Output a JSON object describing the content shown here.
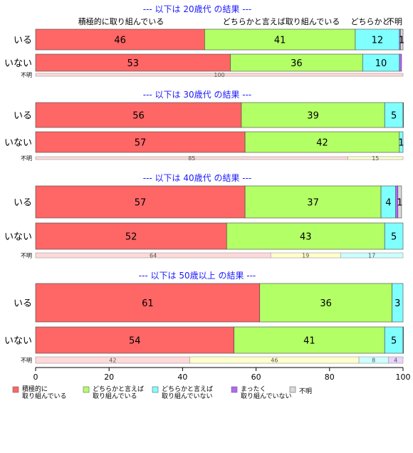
{
  "chart_data": {
    "type": "bar",
    "orientation": "horizontal",
    "stacked": true,
    "xlim": [
      0,
      100
    ],
    "xticks": [
      "0",
      "20",
      "40",
      "60",
      "80",
      "100"
    ],
    "categories_header": [
      "積極的に取り組んでいる",
      "どちらかと言えば取り組んでいる",
      "どちらかと",
      "不明"
    ],
    "legend": [
      {
        "label": [
          "積極的に",
          "取り組んでいる"
        ],
        "color": "#ff6666"
      },
      {
        "label": [
          "どちらかと言えば",
          "取り組んでいる"
        ],
        "color": "#b3ff66"
      },
      {
        "label": [
          "どちらかと言えば",
          "取り組んでいない"
        ],
        "color": "#80ffff"
      },
      {
        "label": [
          "まったく",
          "取り組んでいない"
        ],
        "color": "#b366ff"
      },
      {
        "label": [
          "不明"
        ],
        "color": "#d9d9d9"
      }
    ],
    "thin_colors": [
      "#ffd9d9",
      "#ffffcc",
      "#ccffff",
      "#e8d4ff",
      "#eeeeee"
    ],
    "groups": [
      {
        "title": "--- 以下は 20歳代 の結果 ---",
        "rows": [
          {
            "label": "いる",
            "values": [
              46,
              41,
              12,
              0.3,
              1.2
            ],
            "labels": [
              "46",
              "41",
              "12",
              "",
              "1"
            ]
          },
          {
            "label": "いない",
            "values": [
              53,
              36,
              10,
              0.6,
              0
            ],
            "labels": [
              "53",
              "36",
              "10",
              "",
              ""
            ]
          }
        ],
        "unknown": {
          "label": "不明",
          "values": [
            100,
            0,
            0,
            0,
            0
          ],
          "labels": [
            "100",
            "",
            "",
            "",
            ""
          ]
        }
      },
      {
        "title": "--- 以下は 30歳代 の結果 ---",
        "rows": [
          {
            "label": "いる",
            "values": [
              56,
              39,
              5,
              0.2,
              0
            ],
            "labels": [
              "56",
              "39",
              "5",
              "",
              ""
            ]
          },
          {
            "label": "いない",
            "values": [
              57,
              42,
              1,
              0,
              0
            ],
            "labels": [
              "57",
              "42",
              "1",
              "",
              ""
            ]
          }
        ],
        "unknown": {
          "label": "不明",
          "values": [
            85,
            15,
            0,
            0,
            0
          ],
          "labels": [
            "85",
            "15",
            "",
            "",
            ""
          ]
        }
      },
      {
        "title": "--- 以下は 40歳代 の結果 ---",
        "rows": [
          {
            "label": "いる",
            "values": [
              57,
              37,
              4,
              0.6,
              1
            ],
            "labels": [
              "57",
              "37",
              "4",
              "",
              "1"
            ]
          },
          {
            "label": "いない",
            "values": [
              52,
              43,
              5,
              0,
              0
            ],
            "labels": [
              "52",
              "43",
              "5",
              "",
              ""
            ]
          }
        ],
        "unknown": {
          "label": "不明",
          "values": [
            64,
            19,
            17,
            0,
            0
          ],
          "labels": [
            "64",
            "19",
            "17",
            "",
            ""
          ]
        }
      },
      {
        "title": "--- 以下は 50歳以上 の結果 ---",
        "rows": [
          {
            "label": "いる",
            "values": [
              61,
              36,
              3,
              0,
              0
            ],
            "labels": [
              "61",
              "36",
              "3",
              "",
              ""
            ]
          },
          {
            "label": "いない",
            "values": [
              54,
              41,
              5,
              0.5,
              0
            ],
            "labels": [
              "54",
              "41",
              "5",
              "",
              ""
            ]
          }
        ],
        "unknown": {
          "label": "不明",
          "values": [
            42,
            46,
            8,
            4,
            0
          ],
          "labels": [
            "42",
            "46",
            "8",
            "4",
            ""
          ]
        }
      }
    ]
  }
}
